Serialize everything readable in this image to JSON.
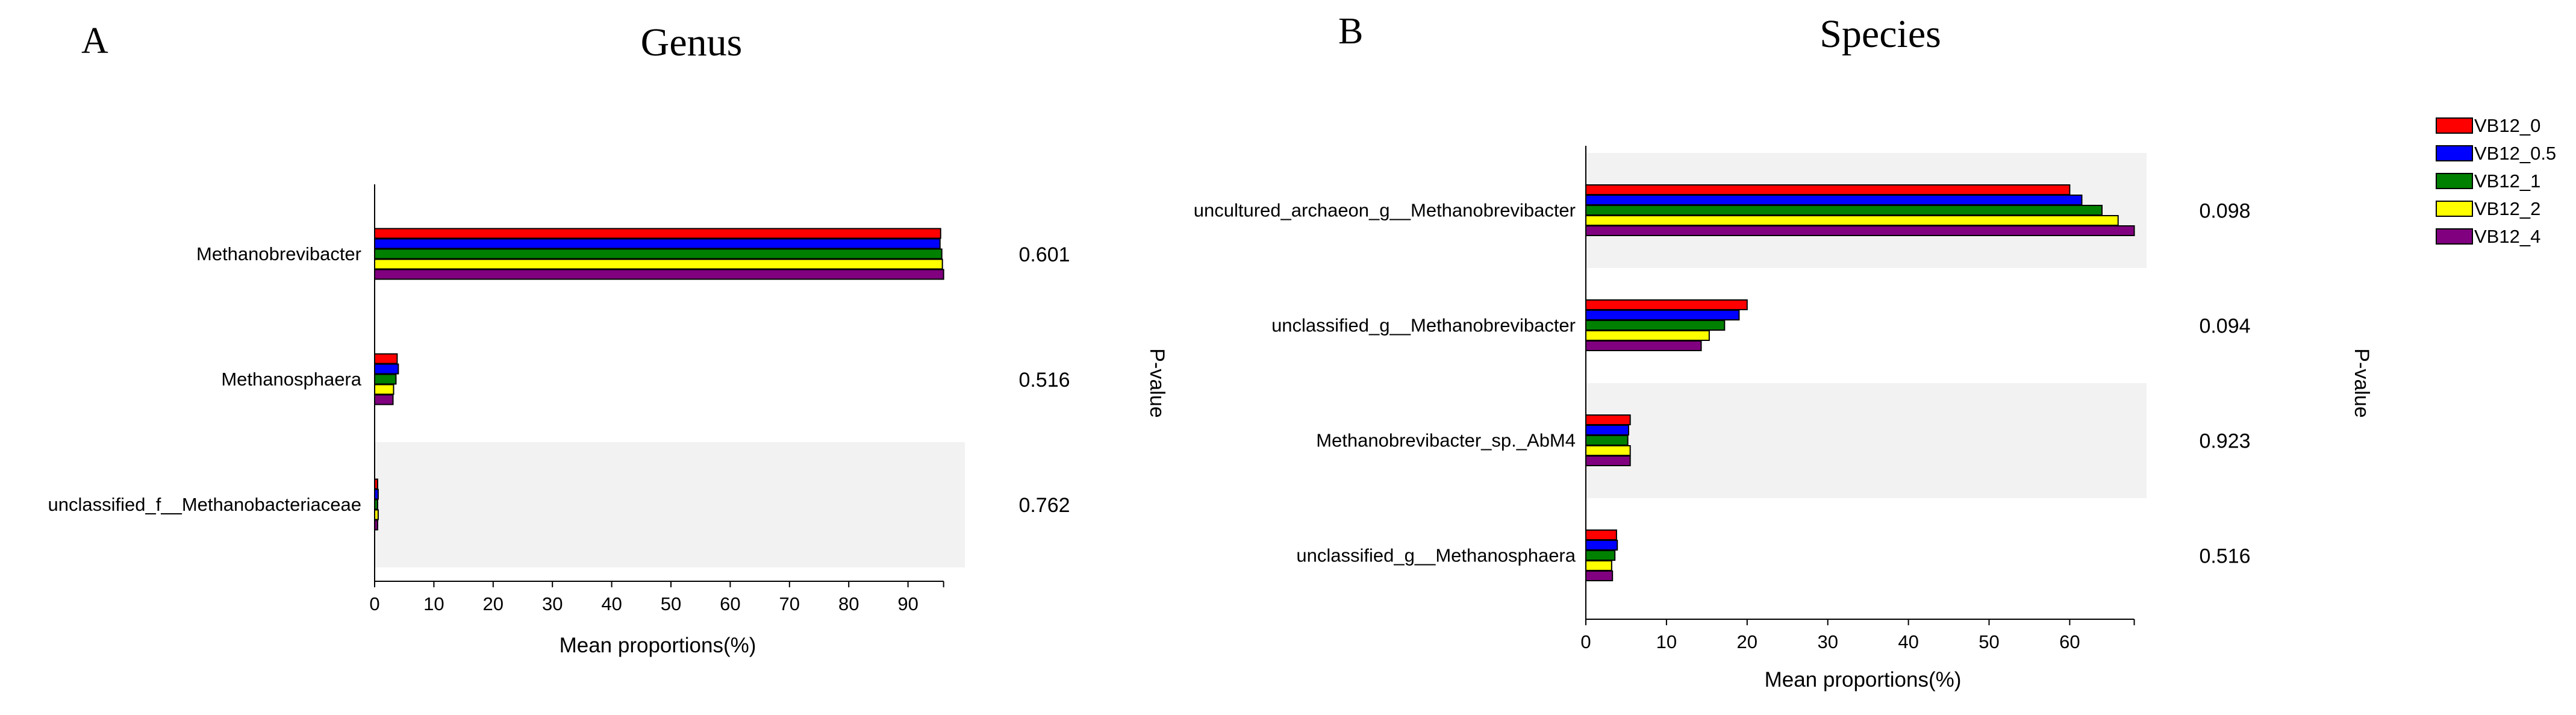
{
  "colors": {
    "VB12_0": "#ff0000",
    "VB12_0.5": "#0000ff",
    "VB12_1": "#008000",
    "VB12_2": "#ffff00",
    "VB12_4": "#800080",
    "band": "#f2f2f2"
  },
  "legend": [
    "VB12_0",
    "VB12_0.5",
    "VB12_1",
    "VB12_2",
    "VB12_4"
  ],
  "chart_data": [
    {
      "panel": "A",
      "type": "bar",
      "orientation": "horizontal",
      "title": "Genus",
      "xlabel": "Mean proportions(%)",
      "p_label": "P-value",
      "xlim": [
        0,
        96
      ],
      "xticks": [
        0,
        10,
        20,
        30,
        40,
        50,
        60,
        70,
        80,
        90
      ],
      "categories": [
        "Methanobrevibacter",
        "Methanosphaera",
        "unclassified_f__Methanobacteriaceae"
      ],
      "p_values": [
        "0.601",
        "0.516",
        "0.762"
      ],
      "series": [
        {
          "name": "VB12_0",
          "values": [
            95.5,
            3.8,
            0.5
          ]
        },
        {
          "name": "VB12_0.5",
          "values": [
            95.4,
            4.0,
            0.6
          ]
        },
        {
          "name": "VB12_1",
          "values": [
            95.7,
            3.6,
            0.5
          ]
        },
        {
          "name": "VB12_2",
          "values": [
            95.8,
            3.2,
            0.6
          ]
        },
        {
          "name": "VB12_4",
          "values": [
            96.0,
            3.1,
            0.5
          ]
        }
      ]
    },
    {
      "panel": "B",
      "type": "bar",
      "orientation": "horizontal",
      "title": "Species",
      "xlabel": "Mean proportions(%)",
      "p_label": "P-value",
      "xlim": [
        0,
        68
      ],
      "xticks": [
        0,
        10,
        20,
        30,
        40,
        50,
        60
      ],
      "categories": [
        "uncultured_archaeon_g__Methanobrevibacter",
        "unclassified_g__Methanobrevibacter",
        "Methanobrevibacter_sp._AbM4",
        "unclassified_g__Methanosphaera"
      ],
      "p_values": [
        "0.098",
        "0.094",
        "0.923",
        "0.516"
      ],
      "series": [
        {
          "name": "VB12_0",
          "values": [
            60.0,
            20.0,
            5.5,
            3.8
          ]
        },
        {
          "name": "VB12_0.5",
          "values": [
            61.5,
            19.0,
            5.3,
            3.9
          ]
        },
        {
          "name": "VB12_1",
          "values": [
            64.0,
            17.2,
            5.2,
            3.6
          ]
        },
        {
          "name": "VB12_2",
          "values": [
            66.0,
            15.3,
            5.5,
            3.2
          ]
        },
        {
          "name": "VB12_4",
          "values": [
            68.0,
            14.3,
            5.5,
            3.3
          ]
        }
      ]
    }
  ]
}
